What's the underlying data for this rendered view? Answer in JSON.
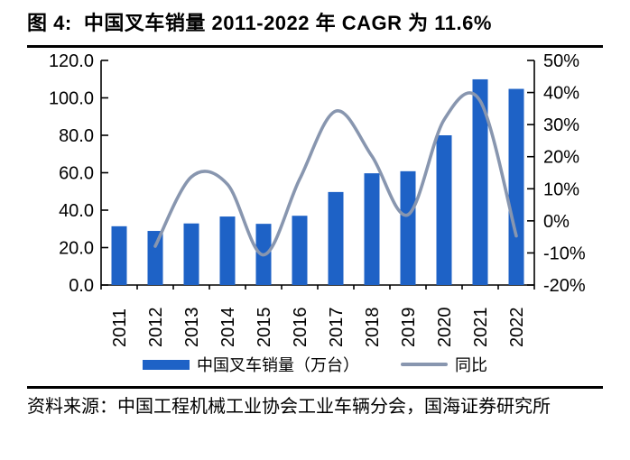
{
  "title": "图 4:  中国叉车销量 2011-2022 年 CAGR 为 11.6%",
  "source_note": "资料来源：中国工程机械工业协会工业车辆分会，国海证券研究所",
  "legend": {
    "bar_label": "中国叉车销量（万台）",
    "line_label": "同比"
  },
  "colors": {
    "bar": "#1E62C6",
    "line": "#8896AF",
    "axis": "#000000",
    "text": "#000000"
  },
  "chart_data": {
    "type": "bar",
    "subtype": "bar-line combo, dual axis",
    "title": "中国叉车销量 2011-2022 年 CAGR 为 11.6%",
    "categories": [
      "2011",
      "2012",
      "2013",
      "2014",
      "2015",
      "2016",
      "2017",
      "2018",
      "2019",
      "2020",
      "2021",
      "2022"
    ],
    "series": [
      {
        "name": "中国叉车销量（万台）",
        "type": "bar",
        "axis": "left",
        "values": [
          31.4,
          28.9,
          32.9,
          36.6,
          32.7,
          37.0,
          49.7,
          59.7,
          60.8,
          80.0,
          109.9,
          104.8
        ]
      },
      {
        "name": "同比",
        "type": "line",
        "axis": "right",
        "unit": "%",
        "smoothed": true,
        "values": [
          null,
          -7.9,
          13.7,
          11.4,
          -10.6,
          13.0,
          34.2,
          20.2,
          1.9,
          31.5,
          37.4,
          -4.7
        ]
      }
    ],
    "left_axis": {
      "min": 0,
      "max": 120,
      "step": 20,
      "tick_labels": [
        "0.0",
        "20.0",
        "40.0",
        "60.0",
        "80.0",
        "100.0",
        "120.0"
      ]
    },
    "right_axis": {
      "min": -20,
      "max": 50,
      "step": 10,
      "unit": "%",
      "tick_labels": [
        "-20%",
        "-10%",
        "0%",
        "10%",
        "20%",
        "30%",
        "40%",
        "50%"
      ]
    },
    "grid": false,
    "legend_position": "bottom",
    "x_tick_rotation": -90
  }
}
